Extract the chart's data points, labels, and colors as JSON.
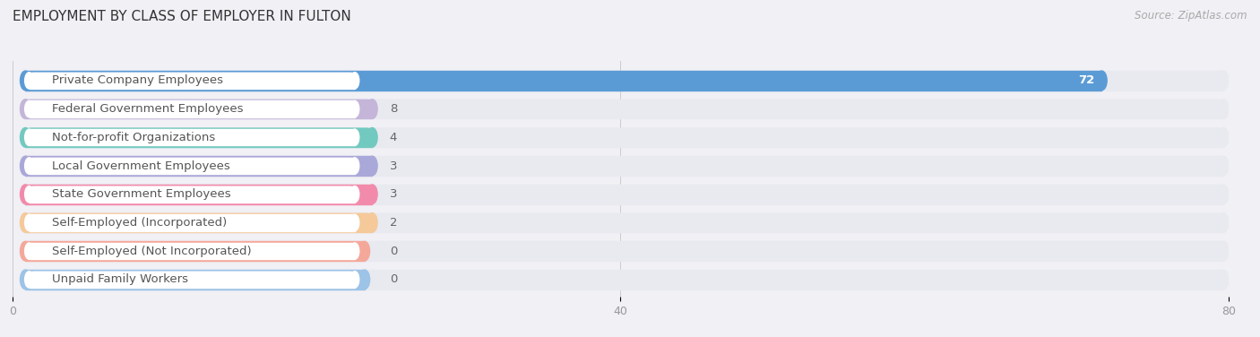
{
  "title": "EMPLOYMENT BY CLASS OF EMPLOYER IN FULTON",
  "source": "Source: ZipAtlas.com",
  "categories": [
    "Private Company Employees",
    "Federal Government Employees",
    "Not-for-profit Organizations",
    "Local Government Employees",
    "State Government Employees",
    "Self-Employed (Incorporated)",
    "Self-Employed (Not Incorporated)",
    "Unpaid Family Workers"
  ],
  "values": [
    72,
    8,
    4,
    3,
    3,
    2,
    0,
    0
  ],
  "bar_colors": [
    "#5b9bd5",
    "#c4b5d9",
    "#72c9bf",
    "#aaa8d8",
    "#f28bab",
    "#f5c99a",
    "#f4a89a",
    "#9dc3e6"
  ],
  "bar_bg_color": "#e8eaf0",
  "label_bg_color": "#ffffff",
  "xlim_max": 80,
  "xticks": [
    0,
    40,
    80
  ],
  "title_fontsize": 11,
  "label_fontsize": 9.5,
  "value_fontsize": 9.5,
  "bg_color": "#f0f0f5"
}
